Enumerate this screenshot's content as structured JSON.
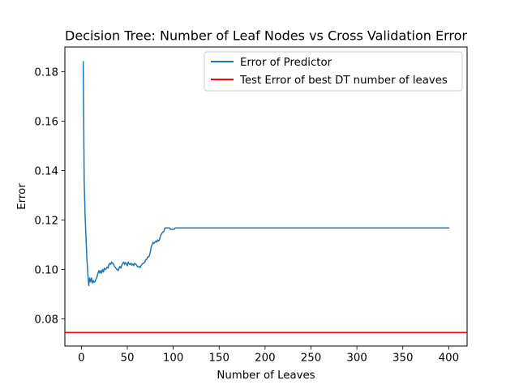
{
  "chart_data": {
    "type": "line",
    "title": "Decision Tree: Number of Leaf Nodes vs Cross Validation Error",
    "xlabel": "Number of Leaves",
    "ylabel": "Error",
    "xlim": [
      -18,
      420
    ],
    "ylim": [
      0.069,
      0.19
    ],
    "xticks": [
      0,
      50,
      100,
      150,
      200,
      250,
      300,
      350,
      400
    ],
    "yticks": [
      0.08,
      0.1,
      0.12,
      0.14,
      0.16,
      0.18
    ],
    "ytick_labels": [
      "0.08",
      "0.10",
      "0.12",
      "0.14",
      "0.16",
      "0.18"
    ],
    "grid": false,
    "legend_position": "top-right",
    "series": [
      {
        "name": "Error of Predictor",
        "color": "#1f77b4",
        "points": [
          [
            2,
            0.184
          ],
          [
            3,
            0.136
          ],
          [
            4,
            0.122
          ],
          [
            5,
            0.113
          ],
          [
            6,
            0.104
          ],
          [
            7,
            0.0985
          ],
          [
            8,
            0.0935
          ],
          [
            9,
            0.0965
          ],
          [
            10,
            0.095
          ],
          [
            11,
            0.0965
          ],
          [
            12,
            0.0945
          ],
          [
            13,
            0.0955
          ],
          [
            14,
            0.0948
          ],
          [
            15,
            0.0952
          ],
          [
            16,
            0.0962
          ],
          [
            17,
            0.097
          ],
          [
            18,
            0.0985
          ],
          [
            19,
            0.0995
          ],
          [
            20,
            0.0985
          ],
          [
            21,
            0.0995
          ],
          [
            22,
            0.0985
          ],
          [
            23,
            0.1
          ],
          [
            24,
            0.099
          ],
          [
            25,
            0.1005
          ],
          [
            26,
            0.1
          ],
          [
            27,
            0.1002
          ],
          [
            28,
            0.101
          ],
          [
            29,
            0.1005
          ],
          [
            30,
            0.102
          ],
          [
            31,
            0.1025
          ],
          [
            32,
            0.102
          ],
          [
            33,
            0.103
          ],
          [
            34,
            0.1025
          ],
          [
            35,
            0.1022
          ],
          [
            36,
            0.1012
          ],
          [
            37,
            0.1008
          ],
          [
            38,
            0.1002
          ],
          [
            39,
            0.1
          ],
          [
            40,
            0.0995
          ],
          [
            41,
            0.1005
          ],
          [
            42,
            0.1012
          ],
          [
            43,
            0.1005
          ],
          [
            44,
            0.1018
          ],
          [
            45,
            0.1025
          ],
          [
            46,
            0.103
          ],
          [
            47,
            0.102
          ],
          [
            48,
            0.1028
          ],
          [
            49,
            0.1022
          ],
          [
            50,
            0.1015
          ],
          [
            51,
            0.103
          ],
          [
            52,
            0.1022
          ],
          [
            53,
            0.102
          ],
          [
            54,
            0.1025
          ],
          [
            55,
            0.1018
          ],
          [
            56,
            0.1022
          ],
          [
            57,
            0.1015
          ],
          [
            58,
            0.1025
          ],
          [
            59,
            0.1022
          ],
          [
            60,
            0.1018
          ],
          [
            61,
            0.1012
          ],
          [
            62,
            0.101
          ],
          [
            63,
            0.1012
          ],
          [
            64,
            0.1008
          ],
          [
            65,
            0.1015
          ],
          [
            66,
            0.102
          ],
          [
            67,
            0.1025
          ],
          [
            68,
            0.1025
          ],
          [
            69,
            0.103
          ],
          [
            70,
            0.104
          ],
          [
            71,
            0.104
          ],
          [
            72,
            0.105
          ],
          [
            73,
            0.105
          ],
          [
            74,
            0.1055
          ],
          [
            75,
            0.107
          ],
          [
            76,
            0.109
          ],
          [
            77,
            0.11
          ],
          [
            78,
            0.111
          ],
          [
            79,
            0.1105
          ],
          [
            80,
            0.111
          ],
          [
            81,
            0.1115
          ],
          [
            82,
            0.111
          ],
          [
            83,
            0.112
          ],
          [
            84,
            0.1115
          ],
          [
            85,
            0.112
          ],
          [
            86,
            0.1135
          ],
          [
            87,
            0.1142
          ],
          [
            88,
            0.1148
          ],
          [
            89,
            0.1152
          ],
          [
            90,
            0.1155
          ],
          [
            91,
            0.1168
          ],
          [
            92,
            0.1168
          ],
          [
            93,
            0.1168
          ],
          [
            94,
            0.1168
          ],
          [
            95,
            0.1168
          ],
          [
            96,
            0.1168
          ],
          [
            97,
            0.1162
          ],
          [
            98,
            0.1162
          ],
          [
            99,
            0.1162
          ],
          [
            100,
            0.1162
          ],
          [
            101,
            0.1162
          ],
          [
            102,
            0.1168
          ],
          [
            104,
            0.1168
          ],
          [
            110,
            0.1168
          ],
          [
            120,
            0.1168
          ],
          [
            150,
            0.1168
          ],
          [
            200,
            0.1168
          ],
          [
            250,
            0.1168
          ],
          [
            300,
            0.1168
          ],
          [
            350,
            0.1168
          ],
          [
            400,
            0.1168
          ]
        ]
      },
      {
        "name": "Test Error of best DT number of leaves",
        "color": "#ff0000",
        "hline": 0.0745
      }
    ]
  }
}
